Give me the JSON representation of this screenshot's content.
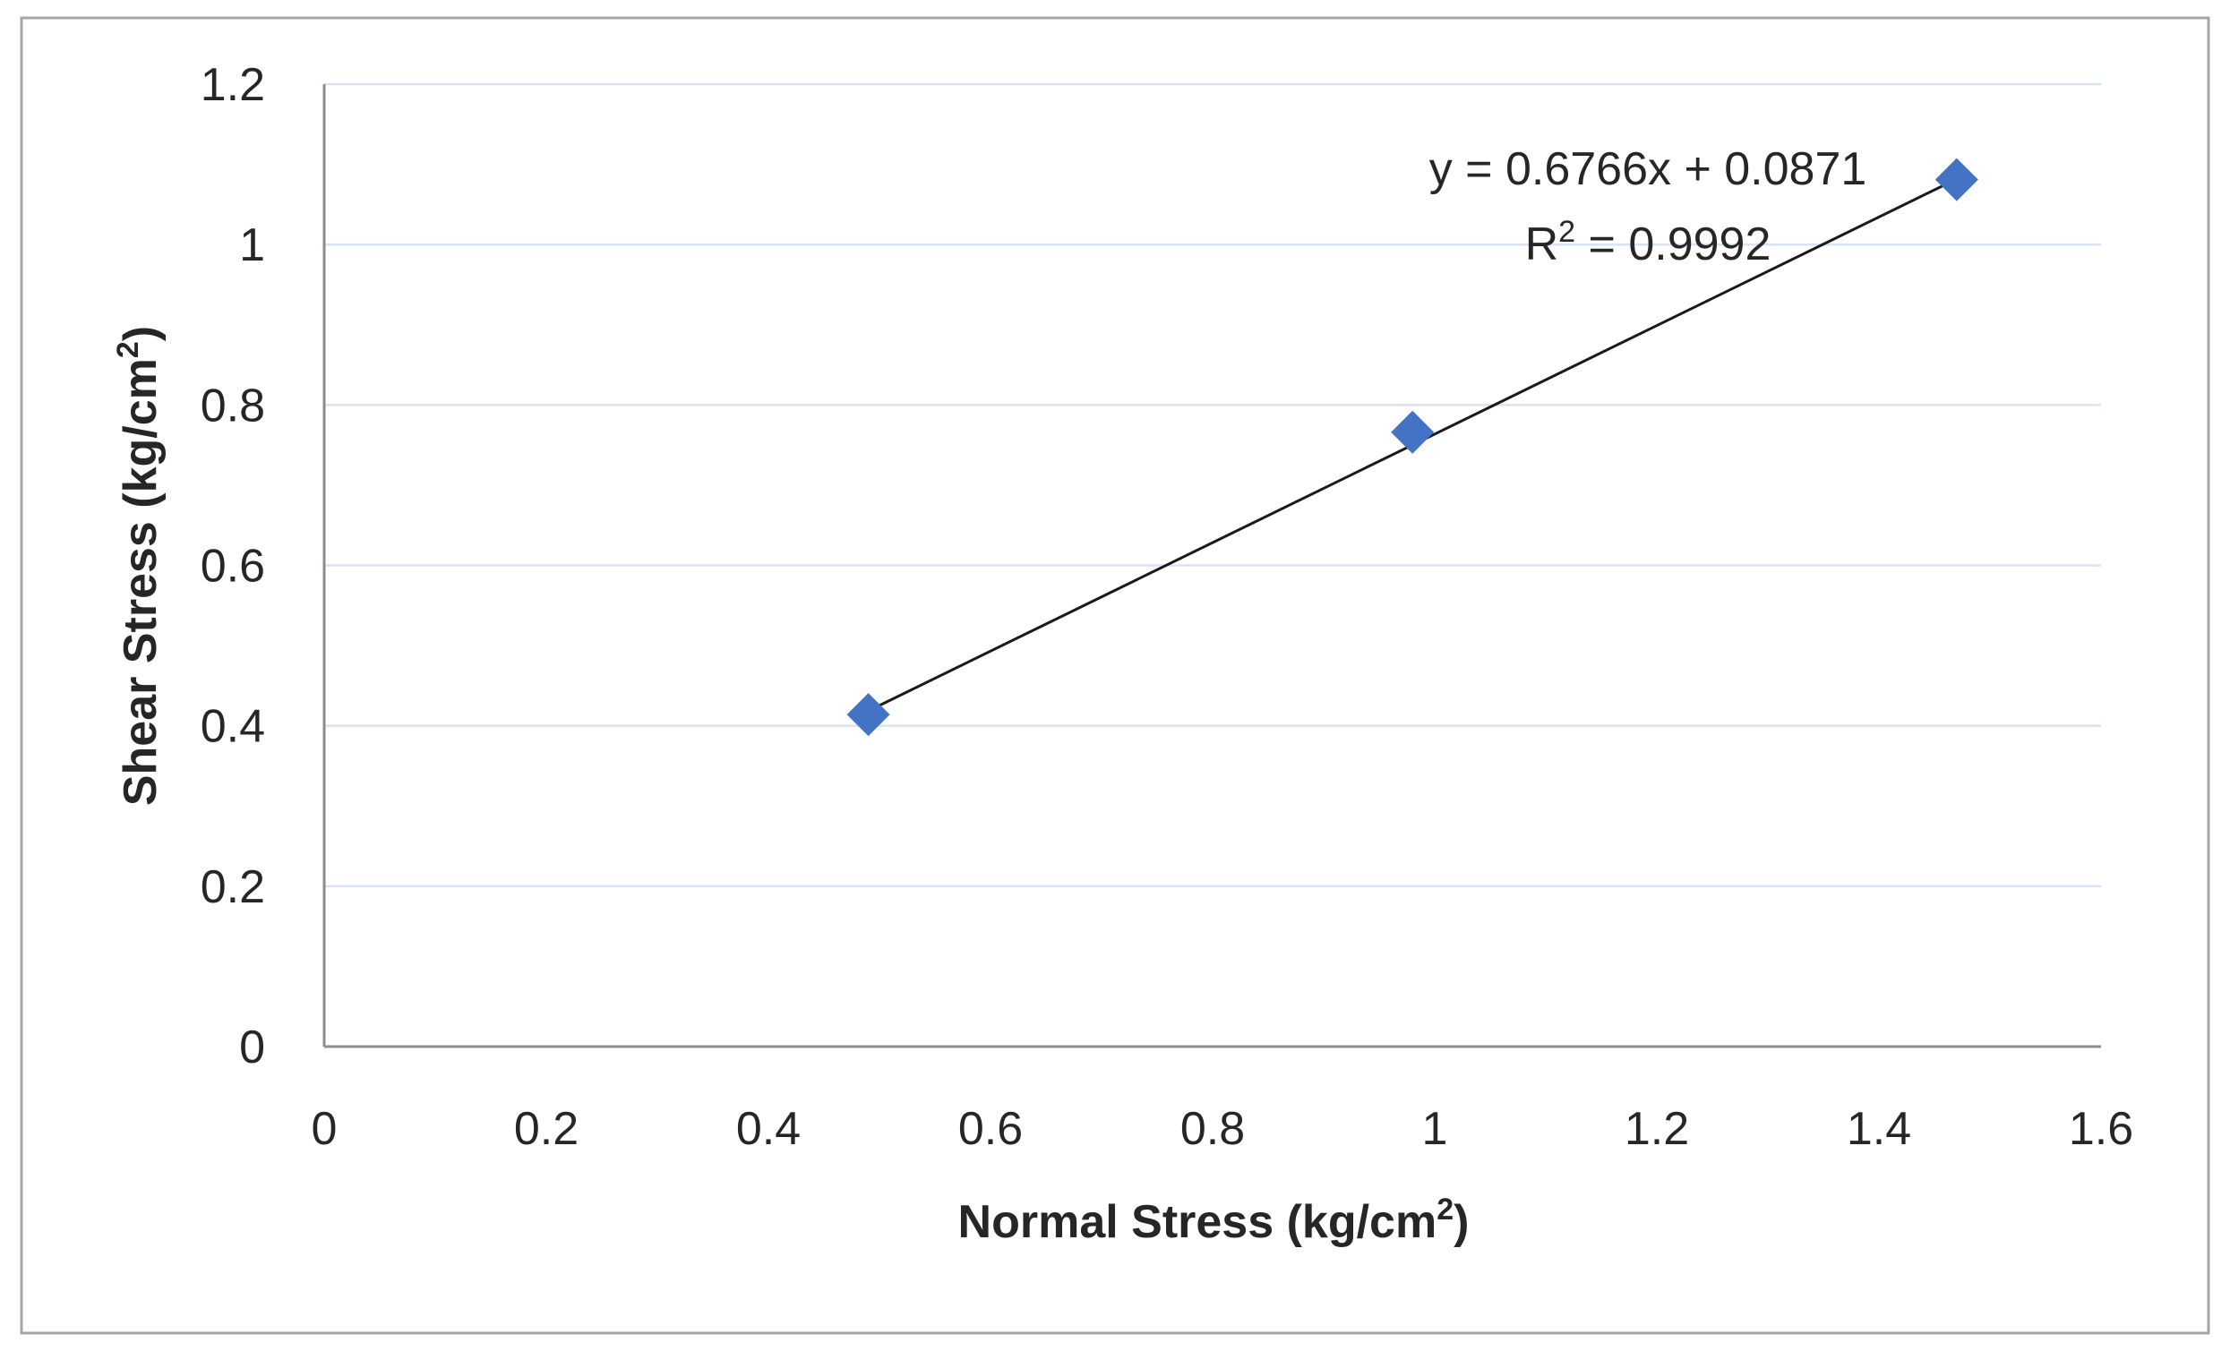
{
  "chart_data": {
    "type": "scatter",
    "xlabel": "Normal Stress (kg/cm",
    "xlabel_sup": "2",
    "xlabel_end": ")",
    "ylabel": "Shear Stress (kg/cm",
    "ylabel_sup": "2",
    "ylabel_end": ")",
    "xlim": [
      0,
      1.6
    ],
    "ylim": [
      0,
      1.2
    ],
    "x_ticks": [
      "0",
      "0.2",
      "0.4",
      "0.6",
      "0.8",
      "1",
      "1.2",
      "1.4",
      "1.6"
    ],
    "y_ticks": [
      "0",
      "0.2",
      "0.4",
      "0.6",
      "0.8",
      "1",
      "1.2"
    ],
    "grid": true,
    "series": [
      {
        "name": "Shear Stress",
        "marker": "diamond",
        "color": "#4472c4",
        "x": [
          0.49,
          0.98,
          1.47
        ],
        "y": [
          0.414,
          0.766,
          1.081
        ]
      }
    ],
    "trendline": {
      "slope": 0.6766,
      "intercept": 0.0871,
      "x_range": [
        0.49,
        1.47
      ],
      "equation_label": "y = 0.6766x + 0.0871",
      "r2_prefix": "R",
      "r2_sup": "2",
      "r2_value_text": " = 0.9992"
    }
  }
}
